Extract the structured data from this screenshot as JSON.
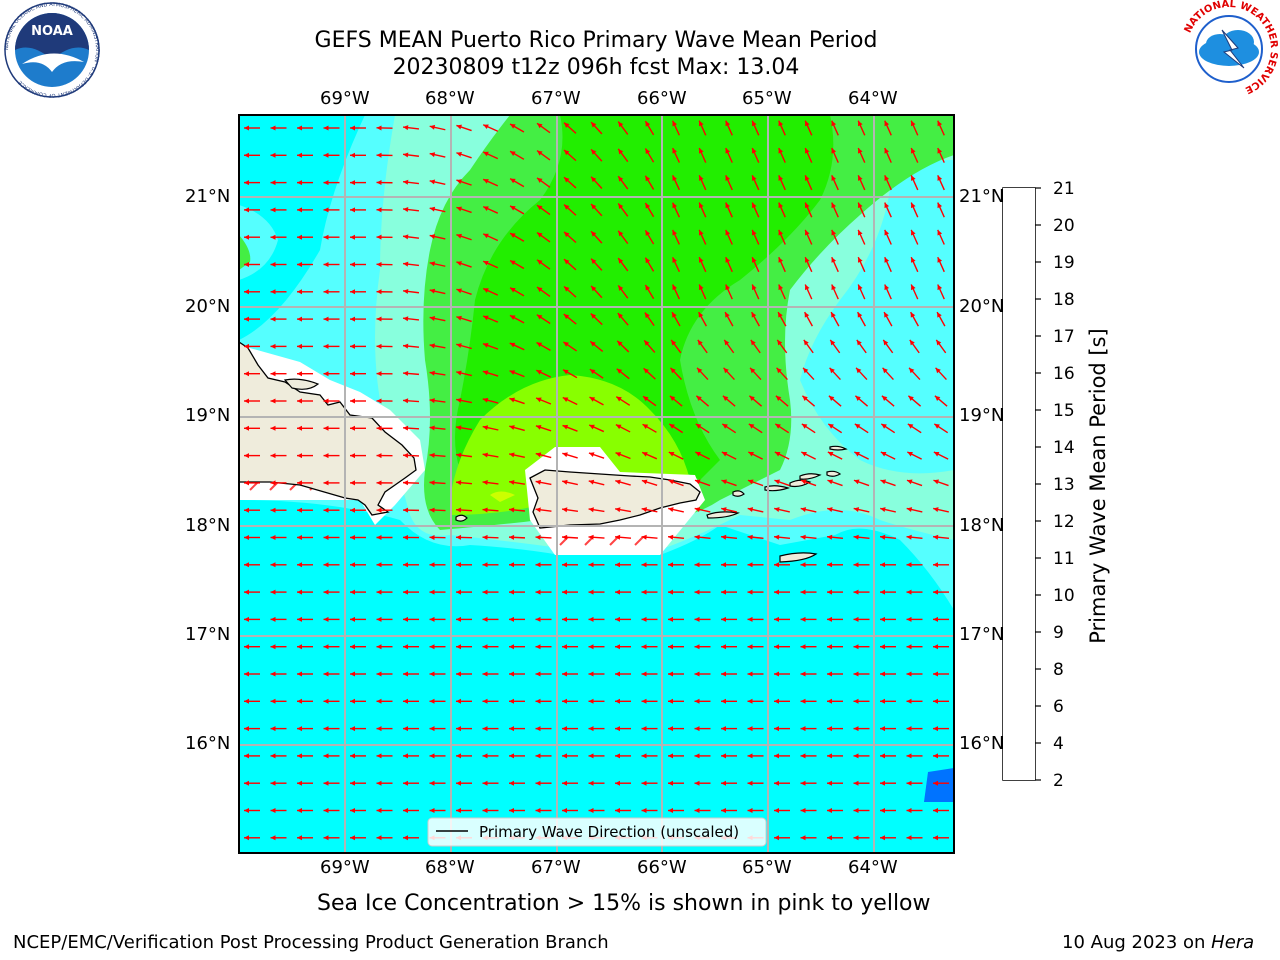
{
  "title": {
    "line1": "GEFS MEAN Puerto Rico Primary Wave Mean Period",
    "line2": "20230809 t12z 096h fcst   Max: 13.04"
  },
  "logos": {
    "left": {
      "name": "noaa-logo",
      "text": "NOAA",
      "ring_text": "NATIONAL OCEANIC AND ATMOSPHERIC ADMINISTRATION · U.S. DEPARTMENT OF COMMERCE"
    },
    "right": {
      "name": "nws-logo",
      "ring_text": "NATIONAL WEATHER SERVICE"
    }
  },
  "map": {
    "lon_labels": [
      "69°W",
      "68°W",
      "67°W",
      "66°W",
      "65°W",
      "64°W"
    ],
    "lat_labels": [
      "21°N",
      "20°N",
      "19°N",
      "18°N",
      "17°N",
      "16°N"
    ],
    "legend_label": "Primary Wave Direction (unscaled)",
    "arrow_color": "#ff0000",
    "land_color": "#efecdc",
    "lon_range": [
      -70.0,
      -63.25
    ],
    "lat_range": [
      15.0,
      21.75
    ]
  },
  "colorbar": {
    "label": "Primary Wave Mean Period [s]",
    "ticks": [
      "2",
      "4",
      "6",
      "8",
      "9",
      "10",
      "11",
      "12",
      "13",
      "14",
      "15",
      "16",
      "17",
      "18",
      "19",
      "20",
      "21"
    ],
    "colors": [
      "#0000ff",
      "#0073ff",
      "#00ffff",
      "#55ffff",
      "#88ffdd",
      "#44ee44",
      "#22ee00",
      "#88ff00",
      "#ccff00",
      "#eeff00",
      "#ffff00",
      "#ffcc00",
      "#ff9900",
      "#ff6600",
      "#ff3300",
      "#ff0000"
    ]
  },
  "footnote": "Sea Ice Concentration > 15% is shown in pink to yellow",
  "footer": {
    "left": "NCEP/EMC/Verification Post Processing Product Generation Branch",
    "right_date": "10 Aug 2023 on ",
    "right_machine": "Hera"
  }
}
